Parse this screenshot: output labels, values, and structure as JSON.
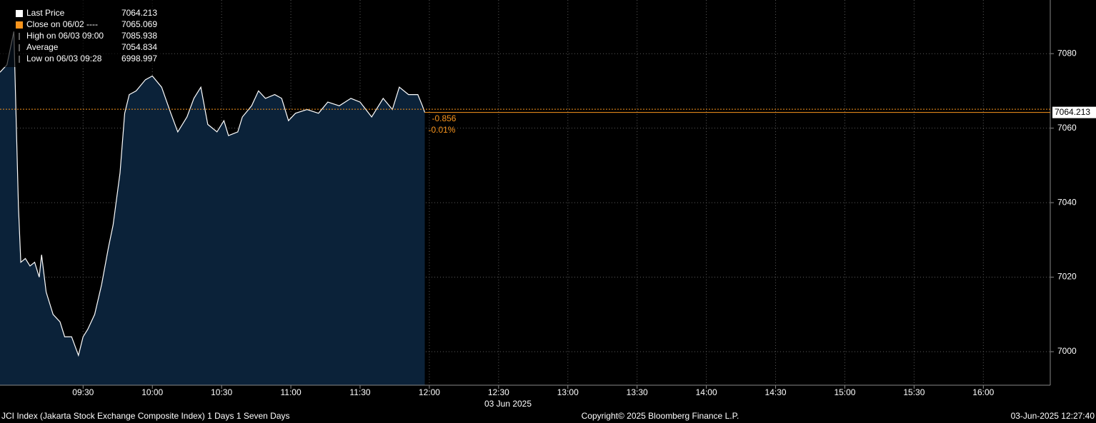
{
  "chart_data": {
    "type": "area",
    "x": [
      "08:54",
      "08:57",
      "09:00",
      "09:02",
      "09:03",
      "09:05",
      "09:07",
      "09:09",
      "09:11",
      "09:12",
      "09:14",
      "09:17",
      "09:20",
      "09:22",
      "09:25",
      "09:28",
      "09:30",
      "09:32",
      "09:35",
      "09:38",
      "09:41",
      "09:43",
      "09:46",
      "09:48",
      "09:50",
      "09:53",
      "09:57",
      "10:00",
      "10:04",
      "10:08",
      "10:11",
      "10:15",
      "10:18",
      "10:21",
      "10:24",
      "10:28",
      "10:31",
      "10:33",
      "10:37",
      "10:39",
      "10:43",
      "10:46",
      "10:49",
      "10:53",
      "10:56",
      "10:59",
      "11:02",
      "11:07",
      "11:12",
      "11:16",
      "11:21",
      "11:26",
      "11:30",
      "11:35",
      "11:40",
      "11:44",
      "11:47",
      "11:51",
      "11:55",
      "11:57",
      "11:58"
    ],
    "values": [
      7075,
      7077,
      7085.938,
      7039,
      7024,
      7025,
      7023,
      7024,
      7020,
      7026,
      7016,
      7010,
      7008,
      7004,
      7004,
      6998.997,
      7004,
      7006,
      7010,
      7018,
      7028,
      7034,
      7048,
      7064,
      7069,
      7070,
      7073,
      7074,
      7071,
      7064,
      7059,
      7063,
      7068,
      7071,
      7061,
      7059,
      7062,
      7058,
      7059,
      7063,
      7066,
      7070,
      7068,
      7069,
      7068,
      7062,
      7064,
      7065,
      7064,
      7067,
      7066,
      7068,
      7067,
      7063,
      7068,
      7065,
      7071,
      7069,
      7069,
      7066,
      7064.213
    ],
    "color": "#ffffff",
    "fill": "#0b2239",
    "accent": "#f7941d",
    "xlim": [
      "08:54",
      "16:29"
    ],
    "xticks": [
      "09:30",
      "10:00",
      "10:30",
      "11:00",
      "11:30",
      "12:00",
      "12:30",
      "13:00",
      "13:30",
      "14:00",
      "14:30",
      "15:00",
      "15:30",
      "16:00"
    ],
    "ylim": [
      6991,
      7094.4
    ],
    "yticks": [
      7000,
      7020,
      7040,
      7060,
      7080
    ],
    "grid": true,
    "date_label": "03 Jun 2025",
    "legend": [
      {
        "name": "Last Price",
        "value": 7064.213
      },
      {
        "name": "Close on 06/02 ----",
        "value": 7065.069
      },
      {
        "name": "High on 06/03 09:00",
        "value": 7085.938
      },
      {
        "name": "Average",
        "value": 7054.834
      },
      {
        "name": "Low on 06/03 09:28",
        "value": 6998.997
      }
    ],
    "change": -0.856,
    "change_pct": {
      "value": -0.01,
      "label": "-0.01%"
    },
    "footer_left": "JCI Index (Jakarta Stock Exchange Composite Index) 1 Days 1 Seven Days",
    "footer_center": "Copyright© 2025 Bloomberg Finance L.P.",
    "footer_right": "03-Jun-2025 12:27:40"
  }
}
